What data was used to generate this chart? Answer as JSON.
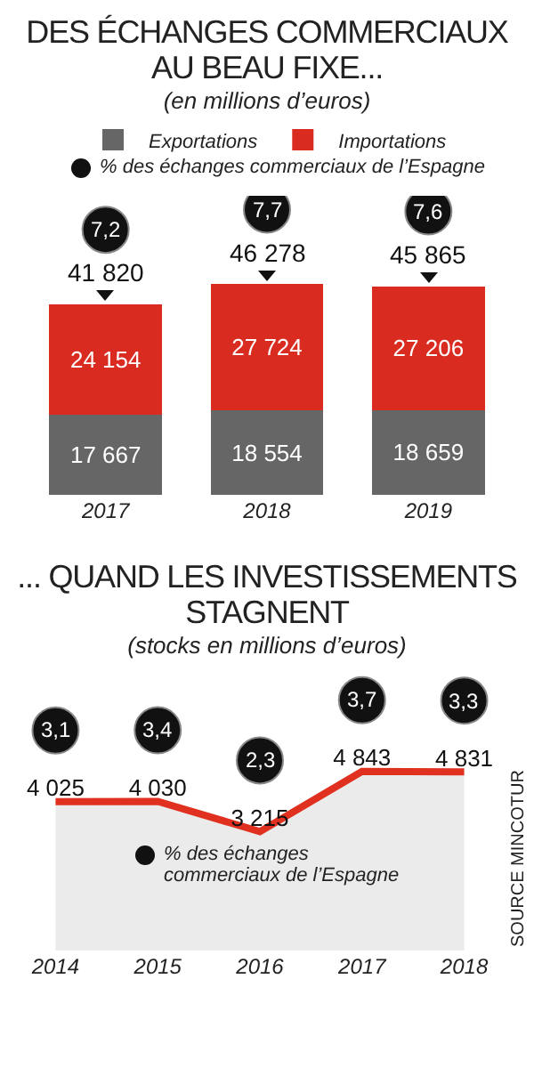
{
  "chart_data": [
    {
      "type": "bar",
      "title": "DES ÉCHANGES COMMERCIAUX AU BEAU FIXE...",
      "subtitle": "(en millions d’euros)",
      "categories": [
        "2017",
        "2018",
        "2019"
      ],
      "stacked": true,
      "legend": "top",
      "series": [
        {
          "name": "Exportations",
          "color": "#666666",
          "values": [
            17667,
            18554,
            18659
          ],
          "value_labels": [
            "17 667",
            "18 554",
            "18 659"
          ]
        },
        {
          "name": "Importations",
          "color": "#d92b1f",
          "values": [
            24154,
            27724,
            27206
          ],
          "value_labels": [
            "24 154",
            "27 724",
            "27 206"
          ]
        }
      ],
      "totals": [
        "41 820",
        "46 278",
        "45 865"
      ],
      "annotations": [
        "% des échanges commerciaux de l’Espagne",
        "7,2",
        "7,7",
        "7,6"
      ]
    },
    {
      "type": "area",
      "title": "... QUAND LES INVESTISSEMENTS STAGNENT",
      "subtitle": "(stocks en millions d’euros)",
      "categories": [
        "2014",
        "2015",
        "2016",
        "2017",
        "2018"
      ],
      "series": [
        {
          "color": "#e0301f",
          "values": [
            4025,
            4030,
            3215,
            4843,
            4831
          ],
          "value_labels": [
            "4 025",
            "4 030",
            "3 215",
            "4 843",
            "4 831"
          ]
        }
      ],
      "annotations": [
        "% des échanges commerciaux de l’Espagne",
        "3,1",
        "3,4",
        "2,3",
        "3,7",
        "3,3",
        "SOURCE MINCOTUR"
      ]
    }
  ]
}
